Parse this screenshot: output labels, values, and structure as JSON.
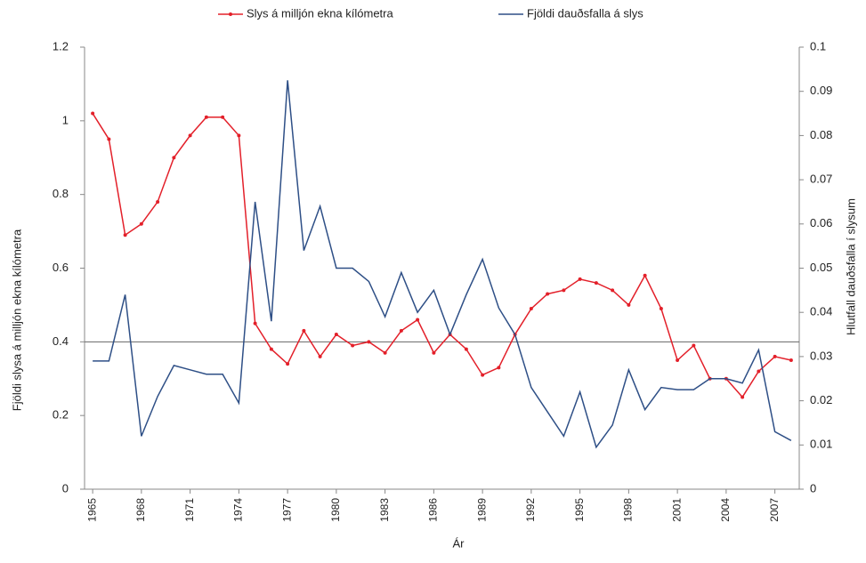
{
  "chart_data": {
    "type": "line",
    "x": [
      1965,
      1966,
      1967,
      1968,
      1969,
      1970,
      1971,
      1972,
      1973,
      1974,
      1975,
      1976,
      1977,
      1978,
      1979,
      1980,
      1981,
      1982,
      1983,
      1984,
      1985,
      1986,
      1987,
      1988,
      1989,
      1990,
      1991,
      1992,
      1993,
      1994,
      1995,
      1996,
      1997,
      1998,
      1999,
      2000,
      2001,
      2002,
      2003,
      2004,
      2005,
      2006,
      2007,
      2008
    ],
    "series": [
      {
        "name": "Slys á milljón ekna kílómetra",
        "color": "#e3202a",
        "axis": "y",
        "markers": true,
        "values": [
          1.02,
          0.95,
          0.69,
          0.72,
          0.78,
          0.9,
          0.96,
          1.01,
          1.01,
          0.96,
          0.45,
          0.38,
          0.34,
          0.43,
          0.36,
          0.42,
          0.39,
          0.4,
          0.37,
          0.43,
          0.46,
          0.37,
          0.42,
          0.38,
          0.31,
          0.33,
          0.42,
          0.49,
          0.53,
          0.54,
          0.57,
          0.56,
          0.54,
          0.5,
          0.58,
          0.49,
          0.35,
          0.39,
          0.3,
          0.3,
          0.25,
          0.32,
          0.36,
          0.35
        ]
      },
      {
        "name": "Fjöldi dauðsfalla á slys",
        "color": "#2e4f86",
        "axis": "y2",
        "markers": false,
        "values": [
          0.029,
          0.029,
          0.044,
          0.012,
          0.021,
          0.028,
          0.027,
          0.026,
          0.026,
          0.0195,
          0.065,
          0.038,
          0.0925,
          0.054,
          0.064,
          0.05,
          0.05,
          0.047,
          0.039,
          0.049,
          0.04,
          0.045,
          0.035,
          0.044,
          0.052,
          0.041,
          0.035,
          0.023,
          0.0175,
          0.012,
          0.022,
          0.0095,
          0.0145,
          0.027,
          0.018,
          0.023,
          0.0225,
          0.0225,
          0.025,
          0.025,
          0.024,
          0.0315,
          0.013,
          0.011
        ]
      }
    ],
    "xlabel": "Ár",
    "ylabel": "Fjöldi slysa á milljón ekna kílómetra",
    "y2label": "Hlutfall dauðsfalla í slysum",
    "xlim": [
      1964.5,
      2008.5
    ],
    "xticks": [
      1965,
      1968,
      1971,
      1974,
      1977,
      1980,
      1983,
      1986,
      1989,
      1992,
      1995,
      1998,
      2001,
      2004,
      2007
    ],
    "ylim": [
      0,
      1.2
    ],
    "yticks": [
      0,
      0.2,
      0.4,
      0.6,
      0.8,
      1,
      1.2
    ],
    "y2lim": [
      0,
      0.1
    ],
    "y2ticks": [
      0,
      0.01,
      0.02,
      0.03,
      0.04,
      0.05,
      0.06,
      0.07,
      0.08,
      0.09,
      0.1
    ],
    "hline": 0.4,
    "legend": "top"
  }
}
